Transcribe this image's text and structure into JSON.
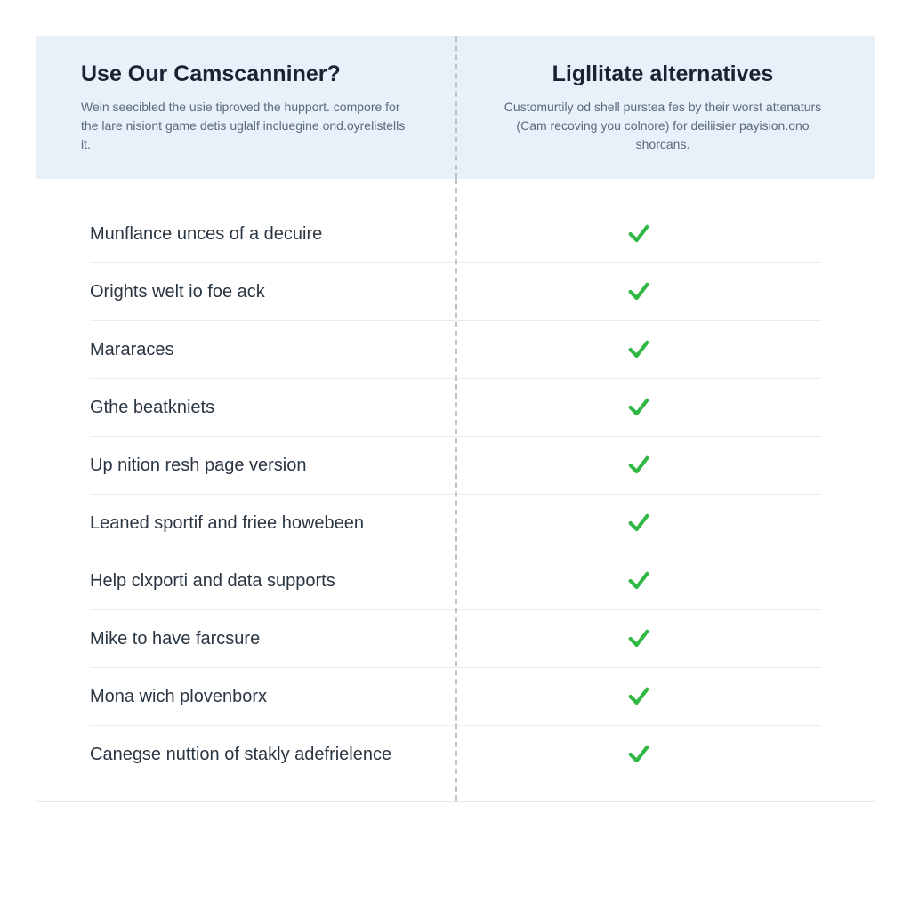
{
  "colors": {
    "header_bg": "#e8f1fa",
    "border": "#e5e9ed",
    "row_border": "#e8ecef",
    "divider": "#b8c5d0",
    "title_text": "#1a2332",
    "desc_text": "#5a6a7a",
    "label_text": "#2a3642",
    "check_green": "#2fb844",
    "background": "#ffffff"
  },
  "typography": {
    "title_fontsize": 25,
    "title_weight": 700,
    "desc_fontsize": 14,
    "label_fontsize": 20
  },
  "header": {
    "left": {
      "title": "Use Our Camscanniner?",
      "description": "Wein seecibled the usie tiproved the hupport. compore for the lare nisiont game detis uglalf incluegine ond.oyrelistells it."
    },
    "right": {
      "title": "Ligllitate alternatives",
      "description": "Customurtily od shell purstea fes by their worst attenaturs (Cam recoving you colnore) for deiliisier payision.ono shorcans."
    }
  },
  "features": [
    {
      "label": "Munflance unces of a decuire",
      "checked": true
    },
    {
      "label": "Orights welt io foe ack",
      "checked": true
    },
    {
      "label": "Mararaces",
      "checked": true
    },
    {
      "label": "Gthe beatkniets",
      "checked": true
    },
    {
      "label": "Up nition resh page version",
      "checked": true
    },
    {
      "label": "Leaned sportif and friee howebeen",
      "checked": true
    },
    {
      "label": "Help clxporti and data supports",
      "checked": true
    },
    {
      "label": "Mike to have farcsure",
      "checked": true
    },
    {
      "label": "Mona wich plovenborx",
      "checked": true
    },
    {
      "label": "Canegse nuttion of stakly adefrielence",
      "checked": true
    }
  ]
}
